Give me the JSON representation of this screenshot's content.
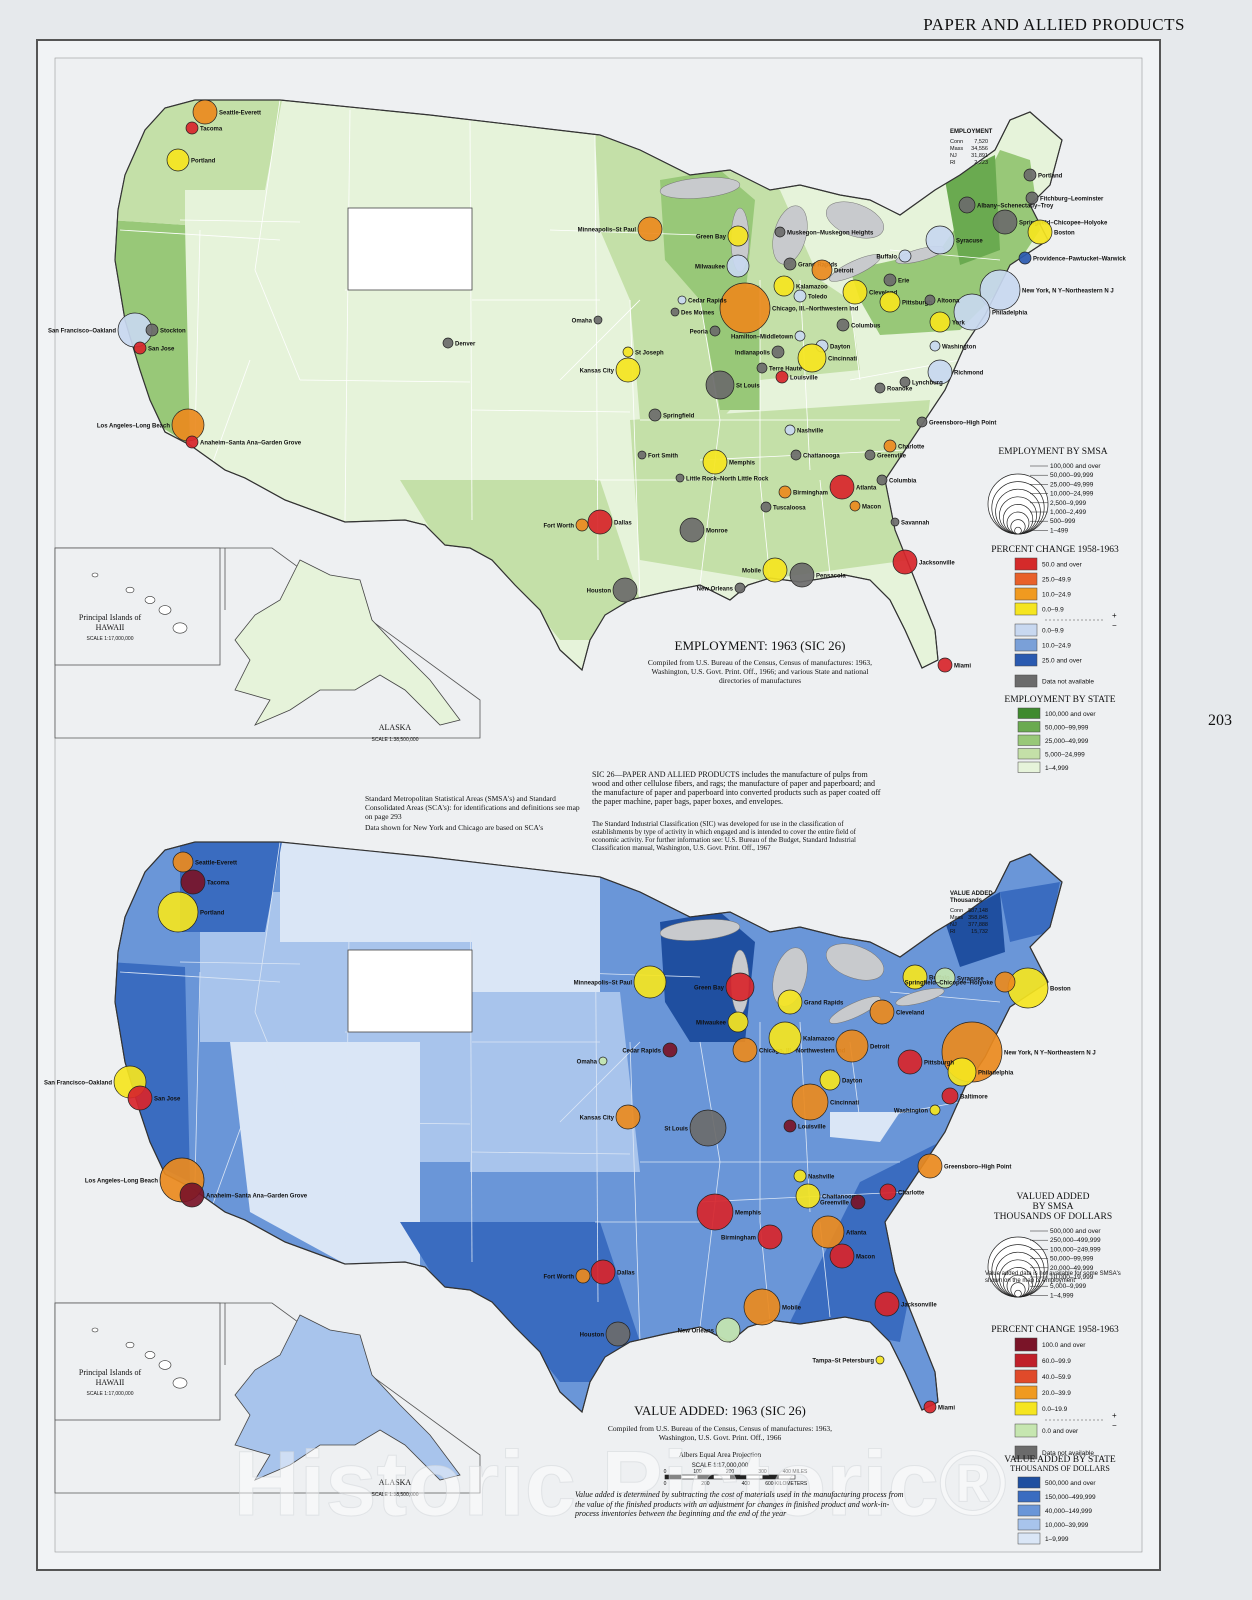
{
  "header": {
    "title": "PAPER AND ALLIED PRODUCTS",
    "page_number": "203"
  },
  "watermark": "Historic Pictoric®",
  "employment_map": {
    "title": "EMPLOYMENT: 1963 (SIC 26)",
    "source": "Compiled from U.S. Bureau of the Census, Census of manufactures: 1963, Washington, U.S. Govt. Print. Off., 1966; and various State and national directories of manufactures",
    "inset": {
      "title": "EMPLOYMENT",
      "rows": [
        [
          "Conn",
          "7,520"
        ],
        [
          "Mass",
          "34,556"
        ],
        [
          "NJ",
          "31,891"
        ],
        [
          "RI",
          "2,223"
        ]
      ]
    },
    "legend_smsa": {
      "title": "EMPLOYMENT BY SMSA",
      "items": [
        "100,000 and over",
        "50,000–99,999",
        "25,000–49,999",
        "10,000–24,999",
        "2,500–9,999",
        "1,000–2,499",
        "500–999",
        "1–499"
      ]
    },
    "legend_change": {
      "title": "PERCENT CHANGE 1958-1963",
      "plus": "+",
      "minus": "−",
      "items": [
        {
          "label": "50.0 and over",
          "color": "#d42a2a"
        },
        {
          "label": "25.0–49.9",
          "color": "#e8602a"
        },
        {
          "label": "10.0–24.9",
          "color": "#f09a20"
        },
        {
          "label": "0.0–9.9",
          "color": "#f5e520"
        },
        {
          "label": "0.0–9.9",
          "color": "#c8d8f0"
        },
        {
          "label": "10.0–24.9",
          "color": "#7aa0d8"
        },
        {
          "label": "25.0 and over",
          "color": "#2a5ab0"
        }
      ],
      "not_available": {
        "label": "Data not available",
        "color": "#6b6b6b"
      }
    },
    "legend_state": {
      "title": "EMPLOYMENT BY STATE",
      "items": [
        {
          "label": "100,000 and over",
          "color": "#3f8a2e"
        },
        {
          "label": "50,000–99,999",
          "color": "#6aaa50"
        },
        {
          "label": "25,000–49,999",
          "color": "#98c878"
        },
        {
          "label": "5,000–24,999",
          "color": "#c4e0a8"
        },
        {
          "label": "1–4,999",
          "color": "#e6f3da"
        }
      ]
    },
    "hawaii": {
      "title": [
        "Principal Islands of",
        "HAWAII"
      ],
      "scale": "SCALE 1:17,000,000"
    },
    "alaska": {
      "title": "ALASKA",
      "scale": "SCALE 1:38,500,000"
    },
    "cities": [
      "Seattle-Everett",
      "Tacoma",
      "Portland",
      "San Francisco–Oakland",
      "Stockton",
      "San Jose",
      "Los Angeles–Long Beach",
      "Anaheim–Santa Ana–Garden Grove",
      "Denver",
      "Minneapolis–St Paul",
      "Green Bay",
      "Milwaukee",
      "Chicago, Ill.–Northwestern Ind",
      "Muskegon–Muskegon Heights",
      "Grand Rapids",
      "Detroit",
      "Kalamazoo",
      "Toledo",
      "Cleveland",
      "Erie",
      "Buffalo",
      "Syracuse",
      "Albany–Schenectady–Troy",
      "Springfield–Chicopee–Holyoke",
      "Boston",
      "Portland",
      "Fitchburg–Leominster",
      "Providence–Pawtucket–Warwick",
      "New York, N Y–Northeastern N J",
      "Philadelphia",
      "Pittsburgh",
      "Altoona",
      "York",
      "Washington",
      "Richmond",
      "Lynchburg",
      "Roanoke",
      "Columbus",
      "Dayton",
      "Cincinnati",
      "Hamilton–Middletown",
      "Indianapolis",
      "Terre Haute",
      "Louisville",
      "St Louis",
      "Kansas City",
      "St Joseph",
      "Omaha",
      "Cedar Rapids",
      "Des Moines",
      "Peoria",
      "Springfield",
      "Fort Smith",
      "Little Rock–North Little Rock",
      "Memphis",
      "Nashville",
      "Chattanooga",
      "Birmingham",
      "Tuscaloosa",
      "Atlanta",
      "Greenville",
      "Charlotte",
      "Greensboro–High Point",
      "Columbia",
      "Macon",
      "Savannah",
      "Jacksonville",
      "Miami",
      "Mobile",
      "Pensacola",
      "New Orleans",
      "Houston",
      "Dallas",
      "Fort Worth",
      "Monroe"
    ]
  },
  "notes": {
    "smsa": "Standard Metropolitan Statistical Areas (SMSA's) and Standard Consolidated Areas (SCA's): for identifications and definitions see map on page 293",
    "chicago": "Data shown for New York and Chicago are based on SCA's",
    "sic": "SIC 26—PAPER AND ALLIED PRODUCTS includes the manufacture of pulps from wood and other cellulose fibers, and rags; the manufacture of paper and paperboard; and the manufacture of paper and paperboard into converted products such as paper coated off the paper machine, paper bags, paper boxes, and envelopes.",
    "classification": "The Standard Industrial Classification (SIC) was developed for use in the classification of establishments by type of activity in which engaged and is intended to cover the entire field of economic activity. For further information see: U.S. Bureau of the Budget, Standard Industrial Classification manual, Washington, U.S. Govt. Print. Off., 1967"
  },
  "value_map": {
    "title": "VALUE ADDED: 1963 (SIC 26)",
    "source": "Compiled from U.S. Bureau of the Census, Census of manufactures: 1963, Washington, U.S. Govt. Print. Off., 1966",
    "inset": {
      "title": [
        "VALUE ADDED",
        "Thousands"
      ],
      "rows": [
        [
          "Conn",
          "$87,148"
        ],
        [
          "Mass",
          "358,845"
        ],
        [
          "NJ",
          "377,888"
        ],
        [
          "RI",
          "15,732"
        ]
      ]
    },
    "legend_smsa": {
      "title": [
        "VALUED ADDED",
        "BY SMSA",
        "THOUSANDS OF DOLLARS"
      ],
      "items": [
        "500,000 and over",
        "250,000–499,999",
        "100,000–249,999",
        "50,000–99,999",
        "20,000–49,999",
        "10,000–19,999",
        "5,000–9,999",
        "1–4,999"
      ],
      "note": "Value added data is not available for some SMSA's shown on the map of employment"
    },
    "legend_change": {
      "title": "PERCENT CHANGE 1958-1963",
      "plus": "+",
      "minus": "−",
      "items": [
        {
          "label": "100.0 and over",
          "color": "#7a1428"
        },
        {
          "label": "60.0–99.9",
          "color": "#c0202a"
        },
        {
          "label": "40.0–59.9",
          "color": "#e04a2a"
        },
        {
          "label": "20.0–39.9",
          "color": "#f09a20"
        },
        {
          "label": "0.0–19.9",
          "color": "#f5e520"
        },
        {
          "label": "0.0 and over",
          "color": "#c6e6b0"
        }
      ],
      "not_available": {
        "label": "Data not available",
        "color": "#6b6b6b"
      }
    },
    "legend_state": {
      "title": [
        "VALUE ADDED BY STATE",
        "THOUSANDS OF DOLLARS"
      ],
      "items": [
        {
          "label": "500,000 and over",
          "color": "#1f4fa0"
        },
        {
          "label": "150,000–499,999",
          "color": "#3a6cc0"
        },
        {
          "label": "40,000–149,999",
          "color": "#6a96d8"
        },
        {
          "label": "10,000–39,999",
          "color": "#a8c4ec"
        },
        {
          "label": "1–9,999",
          "color": "#dae6f6"
        }
      ]
    },
    "hawaii": {
      "title": [
        "Principal Islands of",
        "HAWAII"
      ],
      "scale": "SCALE 1:17,000,000"
    },
    "alaska": {
      "title": "ALASKA",
      "scale": "SCALE 1:38,500,000"
    },
    "cities": [
      "Seattle-Everett",
      "Tacoma",
      "Portland",
      "San Francisco–Oakland",
      "San Jose",
      "Los Angeles–Long Beach",
      "Anaheim–Santa Ana–Garden Grove",
      "Minneapolis–St Paul",
      "Green Bay",
      "Milwaukee",
      "Chicago, Ill.–Northwestern Ind",
      "Grand Rapids",
      "Kalamazoo",
      "Detroit",
      "Cleveland",
      "Buffalo",
      "Syracuse",
      "Boston",
      "Springfield–Chicopee–Holyoke",
      "New York, N Y–Northeastern N J",
      "Philadelphia",
      "Pittsburgh",
      "Baltimore",
      "Washington",
      "Cincinnati",
      "Dayton",
      "Louisville",
      "St Louis",
      "Kansas City",
      "Omaha",
      "Cedar Rapids",
      "Memphis",
      "Nashville",
      "Chattanooga",
      "Atlanta",
      "Macon",
      "Birmingham",
      "Mobile",
      "New Orleans",
      "Houston",
      "Dallas",
      "Fort Worth",
      "Jacksonville",
      "Miami",
      "Tampa–St Petersburg",
      "Greensboro–High Point",
      "Charlotte",
      "Greenville"
    ]
  },
  "projection": {
    "name": "Albers Equal Area Projection",
    "scale": "SCALE 1:17,000,000",
    "miles": [
      "0",
      "100",
      "200",
      "300",
      "400 MILES"
    ],
    "kilometers": [
      "0",
      "200",
      "400",
      "600 KILOMETERS"
    ]
  },
  "definition": "Value added is determined by subtracting the cost of materials used in the manufacturing process from the value of the finished products with an adjustment for changes in finished product and work-in-process inventories between the beginning and the end of the year"
}
